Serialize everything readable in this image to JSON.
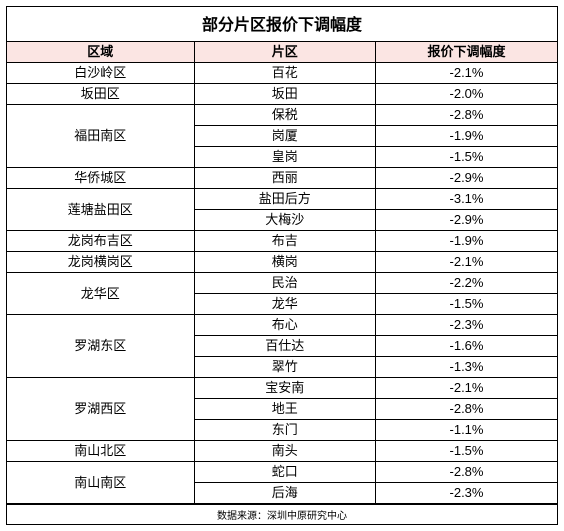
{
  "title": "部分片区报价下调幅度",
  "header_bg": "#fbe5e3",
  "col_widths": [
    "34%",
    "33%",
    "33%"
  ],
  "columns": [
    "区域",
    "片区",
    "报价下调幅度"
  ],
  "rows": [
    {
      "region": "白沙岭区",
      "area": "百花",
      "pct": "-2.1%",
      "span": 1
    },
    {
      "region": "坂田区",
      "area": "坂田",
      "pct": "-2.0%",
      "span": 1
    },
    {
      "region": "福田南区",
      "area": "保税",
      "pct": "-2.8%",
      "span": 3
    },
    {
      "region": "",
      "area": "岗厦",
      "pct": "-1.9%",
      "span": 0
    },
    {
      "region": "",
      "area": "皇岗",
      "pct": "-1.5%",
      "span": 0
    },
    {
      "region": "华侨城区",
      "area": "西丽",
      "pct": "-2.9%",
      "span": 1
    },
    {
      "region": "莲塘盐田区",
      "area": "盐田后方",
      "pct": "-3.1%",
      "span": 2
    },
    {
      "region": "",
      "area": "大梅沙",
      "pct": "-2.9%",
      "span": 0
    },
    {
      "region": "龙岗布吉区",
      "area": "布吉",
      "pct": "-1.9%",
      "span": 1
    },
    {
      "region": "龙岗横岗区",
      "area": "横岗",
      "pct": "-2.1%",
      "span": 1
    },
    {
      "region": "龙华区",
      "area": "民治",
      "pct": "-2.2%",
      "span": 2
    },
    {
      "region": "",
      "area": "龙华",
      "pct": "-1.5%",
      "span": 0
    },
    {
      "region": "罗湖东区",
      "area": "布心",
      "pct": "-2.3%",
      "span": 3
    },
    {
      "region": "",
      "area": "百仕达",
      "pct": "-1.6%",
      "span": 0
    },
    {
      "region": "",
      "area": "翠竹",
      "pct": "-1.3%",
      "span": 0
    },
    {
      "region": "罗湖西区",
      "area": "宝安南",
      "pct": "-2.1%",
      "span": 3
    },
    {
      "region": "",
      "area": "地王",
      "pct": "-2.8%",
      "span": 0
    },
    {
      "region": "",
      "area": "东门",
      "pct": "-1.1%",
      "span": 0
    },
    {
      "region": "南山北区",
      "area": "南头",
      "pct": "-1.5%",
      "span": 1
    },
    {
      "region": "南山南区",
      "area": "蛇口",
      "pct": "-2.8%",
      "span": 2
    },
    {
      "region": "",
      "area": "后海",
      "pct": "-2.3%",
      "span": 0
    }
  ],
  "footer": "数据来源：深圳中原研究中心"
}
